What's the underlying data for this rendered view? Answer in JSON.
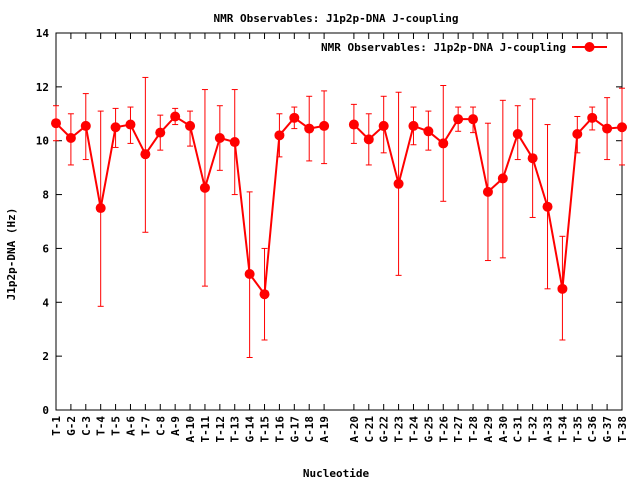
{
  "chart_data": {
    "type": "line",
    "title": "NMR Observables: J1p2p-DNA J-coupling",
    "xlabel": "Nucleotide",
    "ylabel": "J1p2p-DNA (Hz)",
    "ylim": [
      0,
      14
    ],
    "yticks": [
      0,
      2,
      4,
      6,
      8,
      10,
      12,
      14
    ],
    "legend_position": "top-right",
    "color": "#ff0000",
    "series": [
      {
        "name": "NMR Observables: J1p2p-DNA J-coupling",
        "segments": [
          {
            "categories": [
              "T-1",
              "G-2",
              "C-3",
              "T-4",
              "T-5",
              "A-6",
              "T-7",
              "C-8",
              "A-9",
              "A-10",
              "T-11",
              "T-12",
              "T-13",
              "G-14",
              "T-15",
              "T-16",
              "G-17",
              "C-18",
              "A-19"
            ],
            "values": [
              10.65,
              10.1,
              10.55,
              7.5,
              10.5,
              10.6,
              9.5,
              10.3,
              10.9,
              10.55,
              8.25,
              10.1,
              9.95,
              5.05,
              4.3,
              10.2,
              10.85,
              10.45,
              10.55
            ],
            "err_low": [
              10.0,
              9.1,
              9.3,
              3.85,
              9.75,
              9.9,
              6.6,
              9.65,
              10.6,
              9.8,
              4.6,
              8.9,
              8.0,
              1.95,
              2.6,
              9.4,
              10.45,
              9.25,
              9.15
            ],
            "err_high": [
              11.3,
              11.0,
              11.75,
              11.1,
              11.2,
              11.25,
              12.35,
              10.95,
              11.2,
              11.1,
              11.9,
              11.3,
              11.9,
              8.1,
              6.0,
              11.0,
              11.25,
              11.65,
              11.85
            ]
          },
          {
            "categories": [
              "A-20",
              "C-21",
              "G-22",
              "T-23",
              "T-24",
              "G-25",
              "T-26",
              "T-27",
              "T-28",
              "A-29",
              "A-30",
              "C-31",
              "T-32",
              "A-33",
              "T-34",
              "T-35",
              "C-36",
              "G-37",
              "T-38"
            ],
            "values": [
              10.6,
              10.05,
              10.55,
              8.4,
              10.55,
              10.35,
              9.9,
              10.8,
              10.8,
              8.1,
              8.6,
              10.25,
              9.35,
              7.55,
              4.5,
              10.25,
              10.85,
              10.45,
              10.5
            ],
            "err_low": [
              9.9,
              9.1,
              9.55,
              5.0,
              9.85,
              9.65,
              7.75,
              10.35,
              10.3,
              5.55,
              5.65,
              9.3,
              7.15,
              4.5,
              2.6,
              9.55,
              10.4,
              9.3,
              9.1
            ],
            "err_high": [
              11.35,
              11.0,
              11.65,
              11.8,
              11.25,
              11.1,
              12.05,
              11.25,
              11.25,
              10.65,
              11.5,
              11.3,
              11.55,
              10.6,
              6.45,
              10.9,
              11.25,
              11.6,
              11.95
            ]
          }
        ]
      }
    ]
  }
}
